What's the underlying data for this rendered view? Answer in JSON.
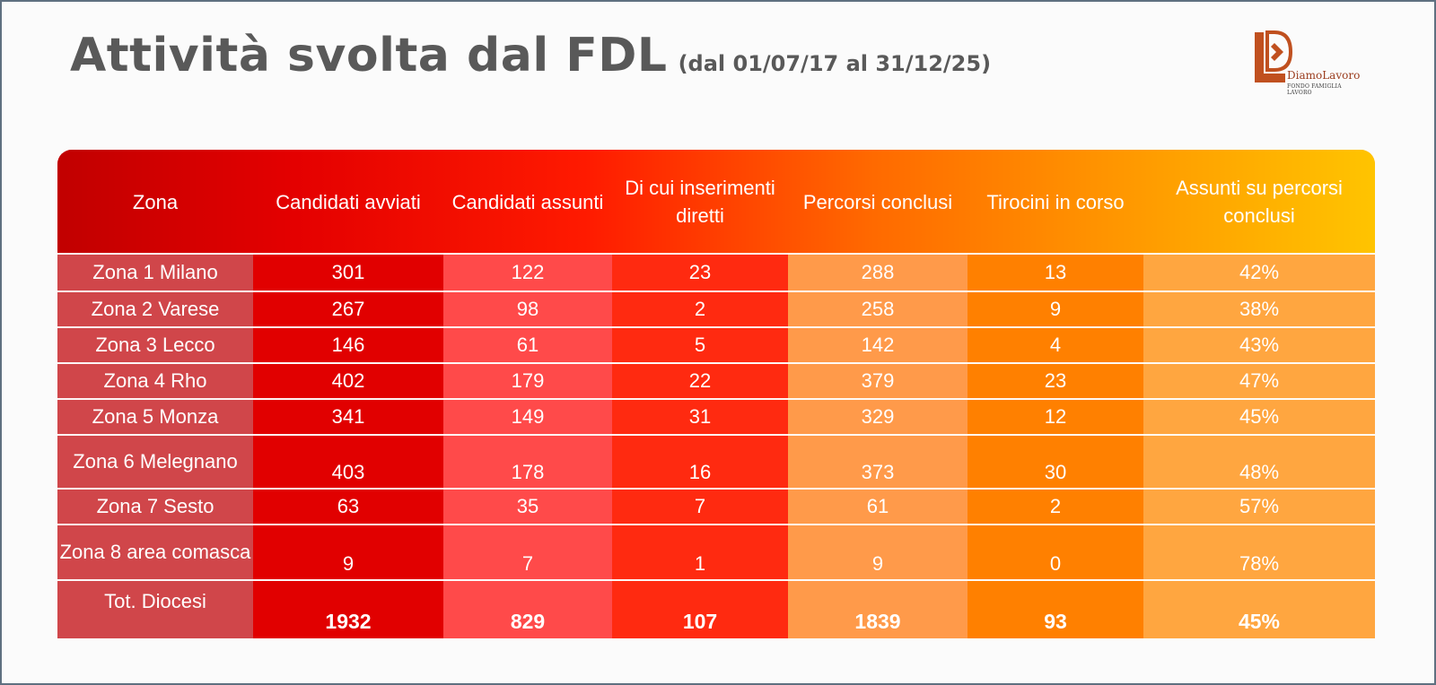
{
  "title": "Attività svolta dal FDL",
  "subtitle": "(dal 01/07/17 al 31/12/25)",
  "logo": {
    "brand": "DiamoLavoro",
    "tagline": "FONDO FAMIGLIA LAVORO"
  },
  "columns": [
    "Zona",
    "Candidati avviati",
    "Candidati assunti",
    "Di cui inserimenti diretti",
    "Percorsi conclusi",
    "Tirocini in corso",
    "Assunti su percorsi conclusi"
  ],
  "rows": [
    [
      "Zona 1 Milano",
      "301",
      "122",
      "23",
      "288",
      "13",
      "42%"
    ],
    [
      "Zona 2 Varese",
      "267",
      "98",
      "2",
      "258",
      "9",
      "38%"
    ],
    [
      "Zona 3 Lecco",
      "146",
      "61",
      "5",
      "142",
      "4",
      "43%"
    ],
    [
      "Zona 4 Rho",
      "402",
      "179",
      "22",
      "379",
      "23",
      "47%"
    ],
    [
      "Zona 5 Monza",
      "341",
      "149",
      "31",
      "329",
      "12",
      "45%"
    ],
    [
      "Zona 6 Melegnano",
      "403",
      "178",
      "16",
      "373",
      "30",
      "48%"
    ],
    [
      "Zona 7 Sesto",
      "63",
      "35",
      "7",
      "61",
      "2",
      "57%"
    ],
    [
      "Zona 8 area comasca",
      "9",
      "7",
      "1",
      "9",
      "0",
      "78%"
    ]
  ],
  "total": [
    "Tot. Diocesi",
    "1932",
    "829",
    "107",
    "1839",
    "93",
    "45%"
  ],
  "colors": {
    "title": "#595959",
    "columns": [
      "#d0464a",
      "#e10000",
      "#ff4a4a",
      "#ff2a10",
      "#ff9a4a",
      "#ff8000",
      "#ffa640"
    ]
  }
}
